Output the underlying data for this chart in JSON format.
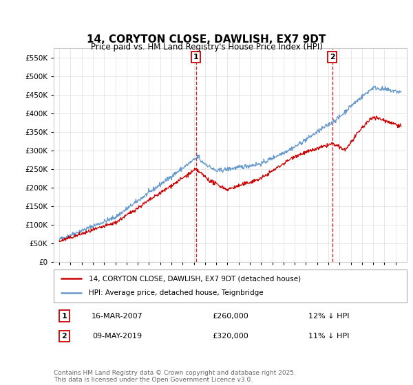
{
  "title": "14, CORYTON CLOSE, DAWLISH, EX7 9DT",
  "subtitle": "Price paid vs. HM Land Registry's House Price Index (HPI)",
  "ytick_values": [
    0,
    50000,
    100000,
    150000,
    200000,
    250000,
    300000,
    350000,
    400000,
    450000,
    500000,
    550000
  ],
  "ylim": [
    0,
    575000
  ],
  "price_paid_color": "#cc0000",
  "hpi_color": "#6699cc",
  "vline_color": "#cc0000",
  "marker1_date": 2007.2,
  "marker2_date": 2019.35,
  "marker1_price": 260000,
  "marker2_price": 320000,
  "legend_label1": "14, CORYTON CLOSE, DAWLISH, EX7 9DT (detached house)",
  "legend_label2": "HPI: Average price, detached house, Teignbridge",
  "table_rows": [
    [
      "1",
      "16-MAR-2007",
      "£260,000",
      "12% ↓ HPI"
    ],
    [
      "2",
      "09-MAY-2019",
      "£320,000",
      "11% ↓ HPI"
    ]
  ],
  "footer": "Contains HM Land Registry data © Crown copyright and database right 2025.\nThis data is licensed under the Open Government Licence v3.0.",
  "background_color": "#ffffff",
  "grid_color": "#dddddd"
}
